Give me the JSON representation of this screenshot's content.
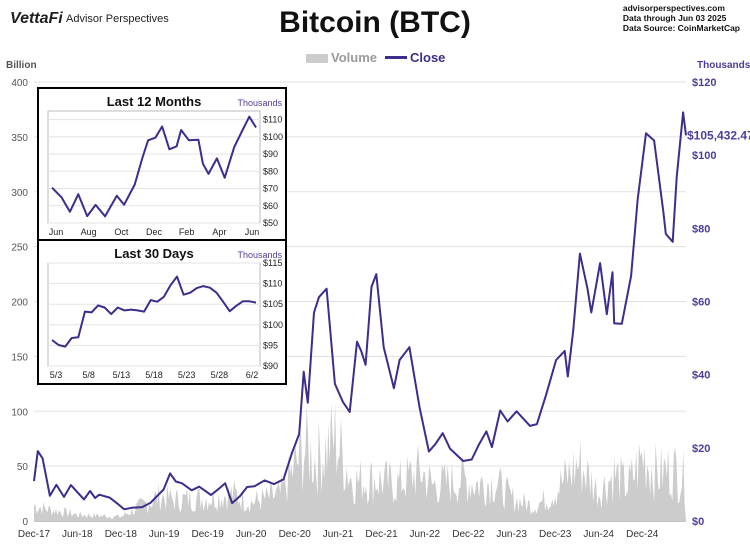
{
  "header": {
    "brand": "VettaFi",
    "brand_sub": "Advisor Perspectives",
    "title": "Bitcoin (BTC)",
    "meta_lines": [
      "advisorperspectives.com",
      "Data through Jun 03 2025",
      "Data Source: CoinMarketCap"
    ]
  },
  "legend": {
    "volume": "Volume",
    "close": "Close"
  },
  "colors": {
    "close": "#3b2e8c",
    "volume": "#cccccc",
    "axis_right": "#4a3f9a",
    "axis_left": "#555555"
  },
  "axes": {
    "left_unit": "Billion",
    "right_unit": "Thousands"
  },
  "chart_data": [
    {
      "type": "line",
      "title": "Bitcoin (BTC)",
      "x_labels": [
        "Dec-17",
        "Jun-18",
        "Dec-18",
        "Jun-19",
        "Dec-19",
        "Jun-20",
        "Dec-20",
        "Jun-21",
        "Dec-21",
        "Jun-22",
        "Dec-22",
        "Jun-23",
        "Dec-23",
        "Jun-24",
        "Dec-24"
      ],
      "x_range": [
        "2017-12-01",
        "2025-06-03"
      ],
      "y_left": {
        "label": "Billion",
        "ticks": [
          0,
          50,
          100,
          150,
          200,
          250,
          300,
          350,
          400
        ],
        "lim": [
          0,
          400
        ]
      },
      "y_right": {
        "label": "Thousands",
        "ticks": [
          "$0",
          "$20",
          "$40",
          "$60",
          "$80",
          "$100",
          "$120"
        ],
        "lim": [
          0,
          120
        ]
      },
      "end_label": "$105,432.47",
      "series": [
        {
          "name": "Close",
          "axis": "right",
          "x": [
            "2017-12-01",
            "2017-12-17",
            "2018-01-06",
            "2018-02-06",
            "2018-03-05",
            "2018-04-06",
            "2018-05-05",
            "2018-06-29",
            "2018-07-25",
            "2018-08-15",
            "2018-09-01",
            "2018-10-15",
            "2018-11-20",
            "2018-12-15",
            "2019-01-15",
            "2019-03-01",
            "2019-04-05",
            "2019-05-30",
            "2019-06-26",
            "2019-07-20",
            "2019-08-15",
            "2019-09-25",
            "2019-10-26",
            "2019-12-15",
            "2020-01-15",
            "2020-02-13",
            "2020-03-13",
            "2020-04-15",
            "2020-05-15",
            "2020-06-15",
            "2020-07-28",
            "2020-09-05",
            "2020-10-15",
            "2020-11-20",
            "2020-12-20",
            "2021-01-08",
            "2021-01-25",
            "2021-02-20",
            "2021-03-13",
            "2021-04-14",
            "2021-05-19",
            "2021-06-22",
            "2021-07-20",
            "2021-08-20",
            "2021-09-07",
            "2021-09-25",
            "2021-10-20",
            "2021-11-09",
            "2021-12-10",
            "2022-01-22",
            "2022-02-15",
            "2022-03-28",
            "2022-05-10",
            "2022-06-18",
            "2022-07-15",
            "2022-08-15",
            "2022-09-15",
            "2022-11-09",
            "2022-12-15",
            "2023-01-15",
            "2023-02-15",
            "2023-03-10",
            "2023-04-14",
            "2023-05-15",
            "2023-06-22",
            "2023-08-17",
            "2023-09-15",
            "2023-10-24",
            "2023-12-05",
            "2024-01-10",
            "2024-01-23",
            "2024-02-15",
            "2024-03-14",
            "2024-04-15",
            "2024-05-01",
            "2024-06-07",
            "2024-07-05",
            "2024-07-29",
            "2024-08-05",
            "2024-09-06",
            "2024-10-15",
            "2024-11-12",
            "2024-12-17",
            "2025-01-20",
            "2025-02-28",
            "2025-03-10",
            "2025-04-08",
            "2025-04-25",
            "2025-05-22",
            "2025-06-03"
          ],
          "values": [
            10.9,
            19.1,
            17.1,
            6.9,
            9.9,
            6.6,
            9.8,
            5.9,
            8.2,
            6.3,
            7.2,
            6.4,
            4.6,
            3.2,
            3.6,
            3.8,
            5.0,
            8.6,
            13.0,
            10.8,
            10.3,
            8.4,
            9.4,
            7.1,
            8.7,
            10.3,
            4.9,
            6.8,
            9.3,
            9.5,
            11.1,
            10.1,
            11.4,
            18.7,
            23.8,
            40.8,
            32.3,
            57.0,
            61.2,
            63.5,
            37.5,
            32.5,
            29.8,
            49.0,
            46.4,
            42.7,
            64.0,
            67.5,
            47.5,
            36.3,
            44.0,
            47.5,
            31.0,
            19.0,
            21.0,
            24.0,
            19.8,
            16.4,
            16.8,
            21.0,
            24.5,
            20.2,
            30.2,
            27.2,
            30.0,
            26.0,
            26.5,
            34.5,
            44.0,
            46.5,
            39.5,
            52.0,
            73.1,
            63.5,
            57.0,
            70.5,
            56.5,
            68.0,
            54.0,
            53.9,
            67.0,
            88.0,
            106.0,
            104.0,
            84.4,
            78.5,
            76.3,
            94.0,
            111.7,
            105.4
          ]
        },
        {
          "name": "Volume",
          "axis": "left",
          "x": [
            "2017-12-01",
            "2018-01-15",
            "2018-06-01",
            "2018-12-01",
            "2019-05-15",
            "2019-07-15",
            "2019-12-01",
            "2020-03-15",
            "2020-06-01",
            "2020-10-01",
            "2021-01-15",
            "2021-03-01",
            "2021-05-20",
            "2021-08-01",
            "2021-11-01",
            "2022-02-01",
            "2022-05-15",
            "2022-07-01",
            "2022-11-10",
            "2023-01-15",
            "2023-03-20",
            "2023-06-01",
            "2023-09-01",
            "2023-11-01",
            "2024-03-10",
            "2024-06-01",
            "2024-08-05",
            "2024-10-01",
            "2024-12-05",
            "2025-02-01",
            "2025-04-07",
            "2025-06-03"
          ],
          "values": [
            15,
            12,
            6,
            4,
            24,
            20,
            22,
            26,
            18,
            25,
            70,
            58,
            80,
            38,
            40,
            35,
            48,
            34,
            40,
            35,
            38,
            22,
            14,
            22,
            55,
            28,
            45,
            33,
            62,
            45,
            50,
            40
          ]
        }
      ]
    },
    {
      "type": "line",
      "title": "Last 12 Months",
      "unit": "Thousands",
      "x_labels": [
        "Jun",
        "Aug",
        "Oct",
        "Dec",
        "Feb",
        "Apr",
        "Jun"
      ],
      "y_ticks": [
        "$50",
        "$60",
        "$70",
        "$80",
        "$90",
        "$100",
        "$110"
      ],
      "ylim": [
        50,
        115
      ],
      "series": [
        {
          "name": "Close",
          "x": [
            "2024-06-03",
            "2024-06-20",
            "2024-07-05",
            "2024-07-20",
            "2024-08-05",
            "2024-08-20",
            "2024-09-06",
            "2024-09-27",
            "2024-10-10",
            "2024-10-29",
            "2024-11-12",
            "2024-11-22",
            "2024-12-05",
            "2024-12-17",
            "2024-12-30",
            "2025-01-12",
            "2025-01-20",
            "2025-02-03",
            "2025-02-20",
            "2025-02-28",
            "2025-03-10",
            "2025-03-25",
            "2025-04-08",
            "2025-04-25",
            "2025-05-10",
            "2025-05-22",
            "2025-06-03"
          ],
          "values": [
            70.5,
            64.9,
            56.5,
            66.7,
            54.0,
            60.5,
            53.9,
            65.8,
            60.6,
            72.3,
            88.0,
            98.0,
            99.5,
            106.0,
            92.8,
            94.5,
            104.0,
            98.0,
            98.3,
            84.4,
            78.5,
            87.5,
            76.3,
            94.0,
            104.0,
            111.7,
            105.4
          ]
        }
      ]
    },
    {
      "type": "line",
      "title": "Last 30 Days",
      "unit": "Thousands",
      "x_labels": [
        "5/3",
        "5/8",
        "5/13",
        "5/18",
        "5/23",
        "5/28",
        "6/2"
      ],
      "y_ticks": [
        "$90",
        "$95",
        "$100",
        "$105",
        "$110",
        "$115"
      ],
      "ylim": [
        90,
        115
      ],
      "series": [
        {
          "name": "Close",
          "x": [
            "5/3",
            "5/4",
            "5/5",
            "5/6",
            "5/7",
            "5/8",
            "5/9",
            "5/10",
            "5/11",
            "5/12",
            "5/13",
            "5/14",
            "5/15",
            "5/16",
            "5/17",
            "5/18",
            "5/19",
            "5/20",
            "5/21",
            "5/22",
            "5/23",
            "5/24",
            "5/25",
            "5/26",
            "5/27",
            "5/28",
            "5/29",
            "5/30",
            "5/31",
            "6/1",
            "6/2",
            "6/3"
          ],
          "values": [
            96.3,
            95.1,
            94.7,
            96.8,
            97.0,
            103.2,
            103.0,
            104.7,
            104.2,
            102.6,
            104.2,
            103.5,
            103.7,
            103.5,
            103.2,
            106.0,
            105.6,
            106.8,
            109.6,
            111.7,
            107.3,
            107.8,
            108.9,
            109.4,
            109.0,
            107.8,
            105.6,
            103.3,
            104.6,
            105.7,
            105.7,
            105.4
          ]
        }
      ]
    }
  ]
}
